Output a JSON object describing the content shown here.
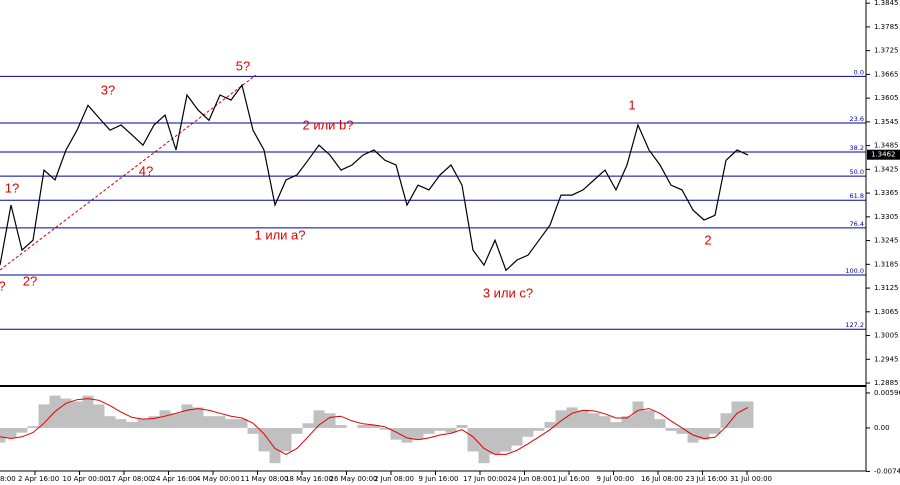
{
  "chart_data": {
    "type": "line",
    "x_labels": [
      "8:00",
      "2 Apr 16:00",
      "10 Apr 00:00",
      "17 Apr 08:00",
      "24 Apr 16:00",
      "4 May 00:00",
      "11 May 08:00",
      "18 May 16:00",
      "26 May 00:00",
      "2 Jun 08:00",
      "9 Jun 16:00",
      "17 Jun 00:00",
      "24 Jun 08:00",
      "1 Jul 16:00",
      "9 Jul 00:00",
      "16 Jul 08:00",
      "23 Jul 16:00",
      "31 Jul 00:00"
    ],
    "series": [
      {
        "color": "#000000",
        "values": [
          1.3183,
          1.3335,
          1.3221,
          1.3246,
          1.3423,
          1.3398,
          1.3474,
          1.3524,
          1.3587,
          1.3555,
          1.3524,
          1.3537,
          1.3512,
          1.3486,
          1.3537,
          1.3562,
          1.3474,
          1.3613,
          1.3575,
          1.3549,
          1.3613,
          1.36,
          1.3638,
          1.3524,
          1.3474,
          1.3335,
          1.3398,
          1.3411,
          1.3448,
          1.3486,
          1.3461,
          1.3423,
          1.3436,
          1.3461,
          1.3474,
          1.3448,
          1.3436,
          1.3335,
          1.3385,
          1.3373,
          1.3411,
          1.3436,
          1.3385,
          1.3221,
          1.3183,
          1.3246,
          1.317,
          1.3196,
          1.3208,
          1.3246,
          1.3284,
          1.336,
          1.336,
          1.3373,
          1.3398,
          1.3423,
          1.3373,
          1.3436,
          1.3537,
          1.3474,
          1.3436,
          1.3385,
          1.3373,
          1.3322,
          1.3297,
          1.3309,
          1.3448,
          1.3474,
          1.3461
        ]
      }
    ],
    "ylim": [
      1.288,
      1.3853
    ],
    "yticks": [
      1.3845,
      1.3785,
      1.3725,
      1.3665,
      1.3605,
      1.3545,
      1.3485,
      1.3425,
      1.3365,
      1.3305,
      1.3245,
      1.3185,
      1.3125,
      1.3065,
      1.3005,
      1.2945,
      1.2885
    ],
    "current_price": {
      "value": 1.3462,
      "label": "1.3462"
    },
    "fib_levels": [
      {
        "value": 1.366,
        "label": "0.0"
      },
      {
        "value": 1.3542,
        "label": "23.6"
      },
      {
        "value": 1.3469,
        "label": "38.2"
      },
      {
        "value": 1.3408,
        "label": "50.0"
      },
      {
        "value": 1.3347,
        "label": "61.8"
      },
      {
        "value": 1.3277,
        "label": "76.4"
      },
      {
        "value": 1.3158,
        "label": "100.0"
      },
      {
        "value": 1.3021,
        "label": "127.2"
      }
    ],
    "fib_color": "#0000a0",
    "annotations": [
      "?",
      "1?",
      "2?",
      "3?",
      "4?",
      "5?",
      "1 или a?",
      "2 или b?",
      "3 или c?",
      "1",
      "2"
    ],
    "annotation_color": "#e00000",
    "macd": {
      "histogram": {
        "color": "#c0c0c0",
        "values": [
          -0.0025,
          -0.0017,
          -0.0008,
          0.0003,
          0.004,
          0.0055,
          0.005,
          0.0045,
          0.0055,
          0.004,
          0.002,
          0.0015,
          0.001,
          0.0015,
          0.002,
          0.003,
          0.0025,
          0.004,
          0.0035,
          0.002,
          0.002,
          0.0015,
          0.0015,
          -0.001,
          -0.004,
          -0.006,
          -0.004,
          -0.001,
          0.0008,
          0.003,
          0.0025,
          0.0005,
          0,
          0.0005,
          0.0005,
          -0.0003,
          -0.002,
          -0.0025,
          -0.002,
          -0.001,
          -0.0005,
          -0.0008,
          0.0005,
          -0.004,
          -0.006,
          -0.0045,
          -0.004,
          -0.003,
          -0.0015,
          -0.0005,
          0.001,
          0.003,
          0.0035,
          0.003,
          0.0025,
          0.002,
          0.001,
          0.002,
          0.0045,
          0.003,
          0.0015,
          -0.0005,
          -0.001,
          -0.0025,
          -0.002,
          -0.001,
          0.0025,
          0.0045,
          0.0045
        ]
      },
      "signal": {
        "color": "#e00000",
        "values": [
          -0.0015,
          -0.0018,
          -0.0015,
          -0.0008,
          0.0008,
          0.0028,
          0.0042,
          0.0048,
          0.005,
          0.0047,
          0.0038,
          0.0027,
          0.0018,
          0.0015,
          0.0016,
          0.002,
          0.0025,
          0.003,
          0.0033,
          0.003,
          0.0025,
          0.002,
          0.0017,
          0.0008,
          -0.001,
          -0.0035,
          -0.0045,
          -0.0035,
          -0.0015,
          0.0005,
          0.0018,
          0.002,
          0.0012,
          0.0007,
          0.0005,
          0.0002,
          -0.0007,
          -0.0017,
          -0.002,
          -0.0017,
          -0.0012,
          -0.0009,
          -0.0003,
          -0.0015,
          -0.0035,
          -0.0045,
          -0.0045,
          -0.0038,
          -0.0027,
          -0.0015,
          -0.0003,
          0.0012,
          0.0025,
          0.003,
          0.0029,
          0.0024,
          0.0017,
          0.0017,
          0.003,
          0.0033,
          0.0025,
          0.0012,
          0,
          -0.0012,
          -0.0018,
          -0.0016,
          0.0002,
          0.0025,
          0.0035
        ]
      },
      "ylim": [
        -0.0075,
        0.0068
      ],
      "yticks": [
        0.00596,
        {
          "value": 0,
          "label": "0.00"
        },
        -0.0074
      ]
    }
  }
}
